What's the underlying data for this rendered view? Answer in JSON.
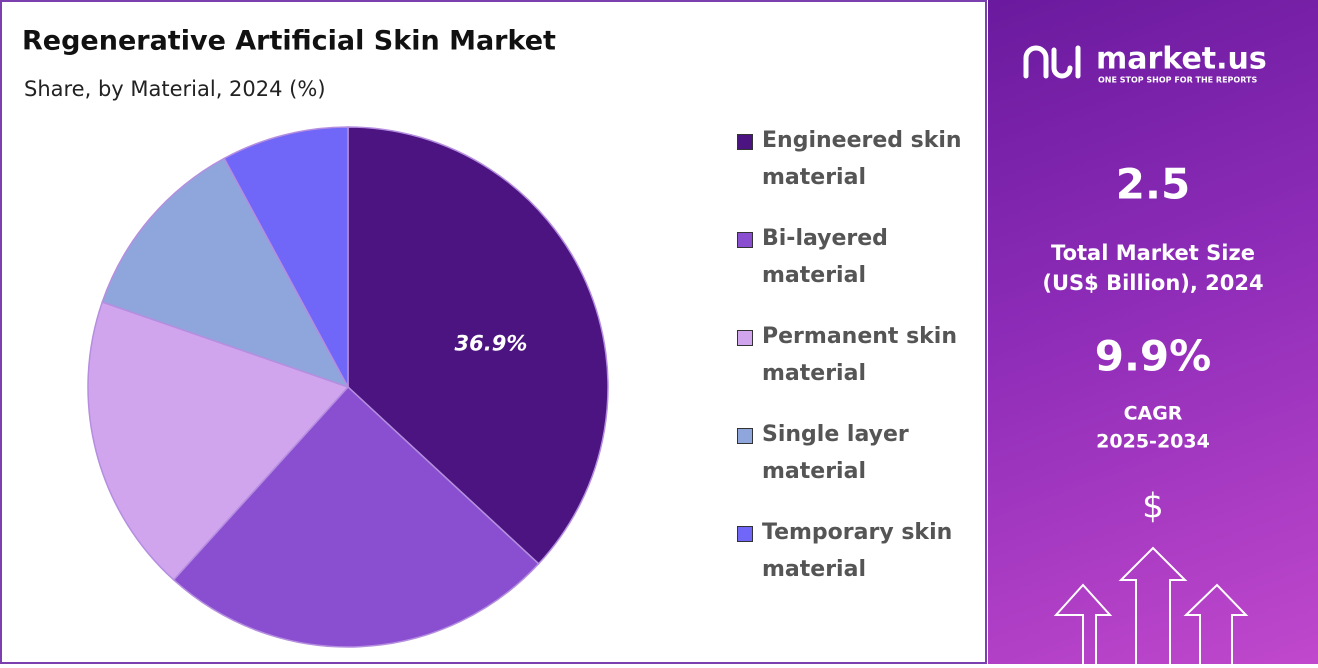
{
  "chart_data": {
    "type": "pie",
    "title": "Regenerative Artificial Skin Market",
    "subtitle": "Share, by Material, 2024 (%)",
    "categories": [
      "Engineered skin material",
      "Bi-layered material",
      "Permanent skin material",
      "Single layer material",
      "Temporary skin material"
    ],
    "values": [
      36.9,
      24.8,
      18.6,
      11.8,
      7.9
    ],
    "value_labels": [
      "36.9%",
      null,
      null,
      null,
      null
    ],
    "colors": [
      "#4b1480",
      "#8a4fd0",
      "#d0a5ee",
      "#8fa6dc",
      "#7067f8"
    ],
    "legend": "right"
  },
  "panel": {
    "logo": "market.us",
    "tagline": "ONE STOP SHOP FOR THE REPORTS",
    "market_size": "2.5",
    "market_size_label_1": "Total Market Size",
    "market_size_label_2": "(US$ Billion), 2024",
    "cagr": "9.9%",
    "cagr_label_1": "CAGR",
    "cagr_label_2": "2025-2034",
    "icon": "$"
  }
}
